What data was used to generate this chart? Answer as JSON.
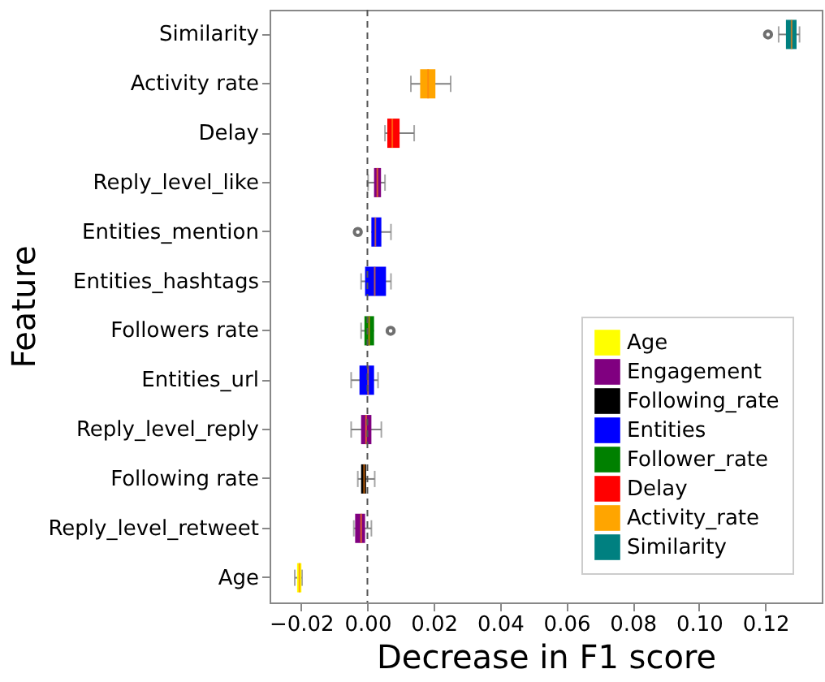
{
  "chart_data": {
    "type": "box",
    "orientation": "horizontal",
    "xlabel": "Decrease in F1 score",
    "ylabel": "Feature",
    "categories": [
      "Similarity",
      "Activity rate",
      "Delay",
      "Reply_level_like",
      "Entities_mention",
      "Entities_hashtags",
      "Followers rate",
      "Entities_url",
      "Reply_level_reply",
      "Following rate",
      "Reply_level_retweet",
      "Age"
    ],
    "series": [
      {
        "name": "Age",
        "color": "#ffff00",
        "boxes": [
          null,
          null,
          null,
          null,
          null,
          null,
          null,
          null,
          null,
          null,
          null,
          {
            "low": -0.0219,
            "q1": -0.0212,
            "median": -0.0205,
            "q3": -0.0199,
            "high": -0.0197
          }
        ]
      },
      {
        "name": "Engagement",
        "color": "#800080",
        "boxes": [
          null,
          null,
          null,
          {
            "low": 0.0002,
            "q1": 0.002,
            "median": 0.003,
            "q3": 0.0041,
            "high": 0.0053
          },
          null,
          null,
          null,
          null,
          {
            "low": -0.0049,
            "q1": -0.0019,
            "median": -0.0004,
            "q3": 0.0012,
            "high": 0.0042
          },
          null,
          {
            "low": -0.0041,
            "q1": -0.0037,
            "median": -0.0019,
            "q3": -0.0007,
            "high": 0.0012
          },
          null
        ]
      },
      {
        "name": "Following_rate",
        "color": "#000000",
        "boxes": [
          null,
          null,
          null,
          null,
          null,
          null,
          null,
          null,
          null,
          {
            "low": -0.0029,
            "q1": -0.0019,
            "median": -0.001,
            "q3": -0.0004,
            "high": 0.0022
          },
          null,
          null
        ]
      },
      {
        "name": "Entities",
        "color": "#0000ff",
        "boxes": [
          null,
          null,
          null,
          null,
          {
            "low": 0.0012,
            "q1": 0.0012,
            "median": 0.0024,
            "q3": 0.0042,
            "high": 0.0071,
            "outliers": [
              -0.0029
            ]
          },
          {
            "low": -0.0019,
            "q1": -0.0007,
            "median": 0.0022,
            "q3": 0.0056,
            "high": 0.0071
          },
          null,
          {
            "low": -0.0049,
            "q1": -0.0024,
            "median": 0.0002,
            "q3": 0.002,
            "high": 0.0032
          },
          null,
          null,
          null,
          null
        ]
      },
      {
        "name": "Follower_rate",
        "color": "#008000",
        "boxes": [
          null,
          null,
          null,
          null,
          null,
          null,
          {
            "low": -0.0019,
            "q1": -0.0009,
            "median": 0.0005,
            "q3": 0.002,
            "high": 0.002,
            "outliers": [
              0.007
            ]
          },
          null,
          null,
          null,
          null,
          null
        ]
      },
      {
        "name": "Delay",
        "color": "#ff0000",
        "boxes": [
          null,
          null,
          {
            "low": 0.0053,
            "q1": 0.006,
            "median": 0.0075,
            "q3": 0.0097,
            "high": 0.0141
          },
          null,
          null,
          null,
          null,
          null,
          null,
          null,
          null,
          null
        ]
      },
      {
        "name": "Activity_rate",
        "color": "#ffa500",
        "boxes": [
          null,
          {
            "low": 0.0131,
            "q1": 0.0159,
            "median": 0.0183,
            "q3": 0.0205,
            "high": 0.0251
          },
          null,
          null,
          null,
          null,
          null,
          null,
          null,
          null,
          null,
          null
        ]
      },
      {
        "name": "Similarity",
        "color": "#008080",
        "boxes": [
          {
            "low": 0.124,
            "q1": 0.1262,
            "median": 0.1279,
            "q3": 0.1294,
            "high": 0.1303,
            "outliers": [
              0.1208
            ]
          },
          null,
          null,
          null,
          null,
          null,
          null,
          null,
          null,
          null,
          null,
          null
        ]
      }
    ],
    "xlim": [
      -0.0295,
      0.137
    ],
    "xticks": [
      {
        "value": -0.02,
        "label": "−0.02"
      },
      {
        "value": 0,
        "label": "0.00"
      },
      {
        "value": 0.02,
        "label": "0.02"
      },
      {
        "value": 0.04,
        "label": "0.04"
      },
      {
        "value": 0.06,
        "label": "0.06"
      },
      {
        "value": 0.08,
        "label": "0.08"
      },
      {
        "value": 0.1,
        "label": "0.10"
      },
      {
        "value": 0.12,
        "label": "0.12"
      }
    ],
    "ref_lines": [
      {
        "axis": "x",
        "value": 0,
        "line_style": "dashed",
        "color": "#555555"
      }
    ],
    "grid": false,
    "legend": "bottom right"
  }
}
